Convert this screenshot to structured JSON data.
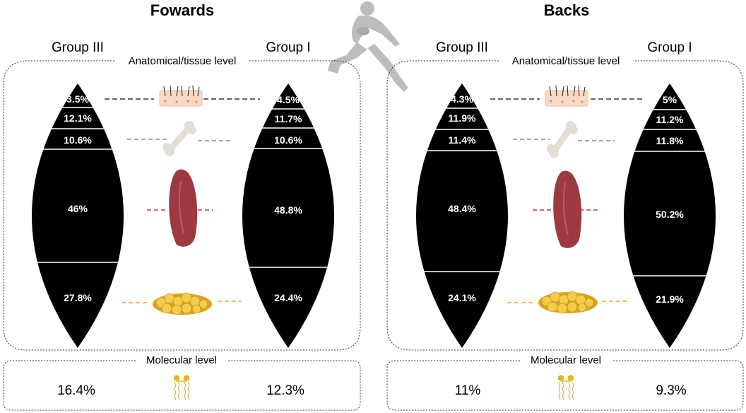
{
  "colors": {
    "ball": "#000000",
    "segment_text": "#ffffff",
    "skin": "#f7d9c4",
    "bone": "#e3ddd2",
    "muscle": "#9c3a3f",
    "fat": "#e6b422",
    "dash_skin": "#333333",
    "dash_bone": "#8a8a8a",
    "dash_muscle": "#c0392b",
    "dash_fat": "#e6a817",
    "silhouette": "#bdbdbd"
  },
  "icons": {
    "player": "rugby-player-silhouette-icon",
    "skin": "skin-tissue-icon",
    "bone": "bone-icon",
    "muscle": "muscle-icon",
    "fat": "adipose-tissue-icon",
    "lipid": "phospholipid-icon"
  },
  "panels": [
    {
      "title": "Fowards",
      "left_group": "Group III",
      "right_group": "Group I",
      "anatomical_label": "Anatomical/tissue level",
      "molecular_label": "Molecular level",
      "left_segments": [
        "3.5%",
        "12.1%",
        "10.6%",
        "46%",
        "27.8%"
      ],
      "right_segments": [
        "4.5%",
        "11.7%",
        "10.6%",
        "48.8%",
        "24.4%"
      ],
      "left_segment_values": [
        3.5,
        12.1,
        10.6,
        46,
        27.8
      ],
      "right_segment_values": [
        4.5,
        11.7,
        10.6,
        48.8,
        24.4
      ],
      "molecular_left": "16.4%",
      "molecular_right": "12.3%"
    },
    {
      "title": "Backs",
      "left_group": "Group III",
      "right_group": "Group I",
      "anatomical_label": "Anatomical/tissue level",
      "molecular_label": "Molecular level",
      "left_segments": [
        "4.3%",
        "11.9%",
        "11.4%",
        "48.4%",
        "24.1%"
      ],
      "right_segments": [
        "5%",
        "11.2%",
        "11.8%",
        "50.2%",
        "21.9%"
      ],
      "left_segment_values": [
        4.3,
        11.9,
        11.4,
        48.4,
        24.1
      ],
      "right_segment_values": [
        5,
        11.2,
        11.8,
        50.2,
        21.9
      ],
      "molecular_left": "11%",
      "molecular_right": "9.3%"
    }
  ]
}
